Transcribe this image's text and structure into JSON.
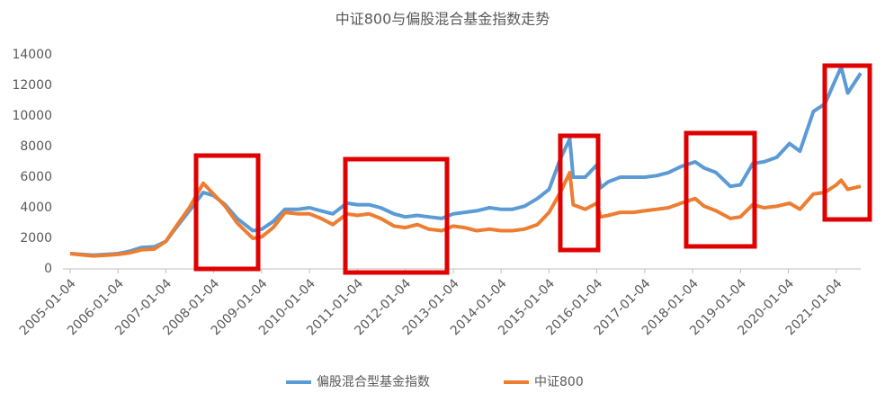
{
  "chart_data": {
    "type": "line",
    "title": "中证800与偏股混合基金指数走势",
    "x": [
      "2005-01-04",
      "2005-04-01",
      "2005-07-01",
      "2005-10-10",
      "2006-01-04",
      "2006-04-03",
      "2006-07-03",
      "2006-10-09",
      "2007-01-04",
      "2007-04-02",
      "2007-07-02",
      "2007-10-16",
      "2008-01-02",
      "2008-04-01",
      "2008-07-01",
      "2008-10-28",
      "2009-01-05",
      "2009-04-01",
      "2009-07-01",
      "2009-10-09",
      "2010-01-04",
      "2010-04-01",
      "2010-07-01",
      "2010-10-15",
      "2011-01-04",
      "2011-04-01",
      "2011-07-01",
      "2011-10-10",
      "2012-01-04",
      "2012-04-05",
      "2012-07-02",
      "2012-10-08",
      "2013-01-04",
      "2013-04-01",
      "2013-07-01",
      "2013-10-08",
      "2014-01-02",
      "2014-04-01",
      "2014-07-01",
      "2014-10-08",
      "2015-01-05",
      "2015-04-01",
      "2015-06-12",
      "2015-07-08",
      "2015-10-08",
      "2016-01-04",
      "2016-02-01",
      "2016-04-01",
      "2016-07-01",
      "2016-10-10",
      "2017-01-03",
      "2017-04-05",
      "2017-07-03",
      "2017-10-09",
      "2018-01-24",
      "2018-04-02",
      "2018-07-02",
      "2018-10-18",
      "2019-01-03",
      "2019-04-08",
      "2019-07-01",
      "2019-10-08",
      "2020-01-13",
      "2020-04-01",
      "2020-07-13",
      "2020-10-09",
      "2021-01-04",
      "2021-02-10",
      "2021-04-01",
      "2021-07-09"
    ],
    "xlim": [
      "2005-01-04",
      "2021-07-09"
    ],
    "xticks": [
      "2005-01-04",
      "2006-01-04",
      "2007-01-04",
      "2008-01-04",
      "2009-01-04",
      "2010-01-04",
      "2011-01-04",
      "2012-01-04",
      "2013-01-04",
      "2014-01-04",
      "2015-01-04",
      "2016-01-04",
      "2017-01-04",
      "2018-01-04",
      "2019-01-04",
      "2020-01-04",
      "2021-01-04"
    ],
    "ylim": [
      0,
      14000
    ],
    "yticks": [
      0,
      2000,
      4000,
      6000,
      8000,
      10000,
      12000,
      14000
    ],
    "legend": "bottom",
    "series": [
      {
        "name": "偏股混合型基金指数",
        "color": "#5b9bd5",
        "values": [
          1000,
          950,
          900,
          950,
          1000,
          1150,
          1400,
          1450,
          1800,
          2800,
          3800,
          5000,
          4800,
          4200,
          3300,
          2500,
          2600,
          3100,
          3900,
          3900,
          4000,
          3800,
          3600,
          4300,
          4200,
          4200,
          4000,
          3600,
          3400,
          3500,
          3400,
          3300,
          3600,
          3700,
          3800,
          4000,
          3900,
          3900,
          4100,
          4600,
          5200,
          7200,
          8500,
          6000,
          6000,
          6800,
          5300,
          5700,
          6000,
          6000,
          6000,
          6100,
          6300,
          6700,
          7000,
          6600,
          6300,
          5400,
          5500,
          6900,
          7000,
          7300,
          8200,
          7700,
          10300,
          10800,
          12500,
          13200,
          11500,
          12800
        ]
      },
      {
        "name": "中证800",
        "color": "#ed7d31",
        "values": [
          1000,
          920,
          850,
          900,
          950,
          1050,
          1250,
          1300,
          1800,
          2900,
          4000,
          5600,
          4900,
          4100,
          3000,
          2000,
          2100,
          2700,
          3700,
          3600,
          3600,
          3300,
          2900,
          3600,
          3500,
          3600,
          3300,
          2800,
          2700,
          2900,
          2600,
          2500,
          2800,
          2700,
          2500,
          2600,
          2500,
          2500,
          2600,
          2900,
          3700,
          5000,
          6300,
          4200,
          3900,
          4300,
          3400,
          3500,
          3700,
          3700,
          3800,
          3900,
          4000,
          4300,
          4600,
          4100,
          3800,
          3300,
          3400,
          4200,
          4000,
          4100,
          4300,
          3900,
          4900,
          5000,
          5500,
          5800,
          5200,
          5400
        ]
      }
    ]
  }
}
